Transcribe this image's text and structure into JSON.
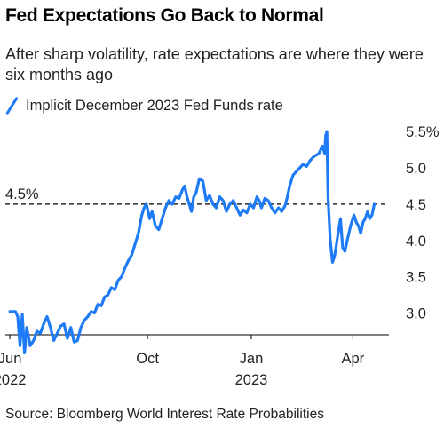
{
  "title": "Fed Expectations Go Back to Normal",
  "subtitle": "After sharp volatility, rate expectations are where they were six months ago",
  "source": "Source: Bloomberg World Interest Rate Probabilities",
  "chart_data": {
    "type": "line",
    "title": "Fed Expectations Go Back to Normal",
    "subtitle": "After sharp volatility, rate expectations are where they were six months ago",
    "xlabel": "",
    "ylabel": "",
    "ylim": [
      2.7,
      5.6
    ],
    "xlim": [
      "2022-05-28",
      "2023-05-03"
    ],
    "y_ticks": [
      {
        "value": 3.0,
        "label": "3.0"
      },
      {
        "value": 3.5,
        "label": "3.5"
      },
      {
        "value": 4.0,
        "label": "4.0"
      },
      {
        "value": 4.5,
        "label": "4.5"
      },
      {
        "value": 5.0,
        "label": "5.0"
      },
      {
        "value": 5.5,
        "label": "5.5%"
      }
    ],
    "x_ticks": [
      {
        "date": "2022-06-01",
        "label": "Jun",
        "sublabel": "2022"
      },
      {
        "date": "2022-10-01",
        "label": "Oct",
        "sublabel": ""
      },
      {
        "date": "2023-01-01",
        "label": "Jan",
        "sublabel": "2023"
      },
      {
        "date": "2023-04-01",
        "label": "Apr",
        "sublabel": ""
      }
    ],
    "grid": {
      "horizontal": false,
      "vertical": false
    },
    "legend_position": "top-left",
    "reference_line": {
      "value": 4.5,
      "label": "4.5%",
      "style": "dashed"
    },
    "series": [
      {
        "name": "Implicit December 2023 Fed Funds rate",
        "color": "#1e7bf5",
        "points": [
          [
            "2022-06-01",
            3.02
          ],
          [
            "2022-06-06",
            3.02
          ],
          [
            "2022-06-08",
            2.95
          ],
          [
            "2022-06-10",
            2.55
          ],
          [
            "2022-06-12",
            2.98
          ],
          [
            "2022-06-14",
            2.45
          ],
          [
            "2022-06-16",
            2.8
          ],
          [
            "2022-06-19",
            2.55
          ],
          [
            "2022-06-22",
            2.62
          ],
          [
            "2022-06-25",
            2.75
          ],
          [
            "2022-06-28",
            2.72
          ],
          [
            "2022-07-01",
            2.85
          ],
          [
            "2022-07-04",
            2.95
          ],
          [
            "2022-07-07",
            2.8
          ],
          [
            "2022-07-10",
            2.62
          ],
          [
            "2022-07-13",
            2.72
          ],
          [
            "2022-07-16",
            2.82
          ],
          [
            "2022-07-19",
            2.85
          ],
          [
            "2022-07-22",
            2.65
          ],
          [
            "2022-07-25",
            2.8
          ],
          [
            "2022-07-28",
            2.6
          ],
          [
            "2022-07-31",
            2.62
          ],
          [
            "2022-08-03",
            2.8
          ],
          [
            "2022-08-06",
            2.9
          ],
          [
            "2022-08-09",
            2.95
          ],
          [
            "2022-08-12",
            3.02
          ],
          [
            "2022-08-15",
            3.0
          ],
          [
            "2022-08-18",
            3.12
          ],
          [
            "2022-08-21",
            3.1
          ],
          [
            "2022-08-24",
            3.22
          ],
          [
            "2022-08-27",
            3.25
          ],
          [
            "2022-08-30",
            3.35
          ],
          [
            "2022-09-02",
            3.32
          ],
          [
            "2022-09-05",
            3.45
          ],
          [
            "2022-09-08",
            3.5
          ],
          [
            "2022-09-11",
            3.62
          ],
          [
            "2022-09-14",
            3.72
          ],
          [
            "2022-09-17",
            3.8
          ],
          [
            "2022-09-20",
            3.95
          ],
          [
            "2022-09-23",
            4.1
          ],
          [
            "2022-09-26",
            4.35
          ],
          [
            "2022-09-28",
            4.45
          ],
          [
            "2022-09-30",
            4.5
          ],
          [
            "2022-10-03",
            4.3
          ],
          [
            "2022-10-05",
            4.4
          ],
          [
            "2022-10-08",
            4.2
          ],
          [
            "2022-10-11",
            4.15
          ],
          [
            "2022-10-14",
            4.3
          ],
          [
            "2022-10-17",
            4.45
          ],
          [
            "2022-10-20",
            4.55
          ],
          [
            "2022-10-23",
            4.5
          ],
          [
            "2022-10-26",
            4.6
          ],
          [
            "2022-10-29",
            4.58
          ],
          [
            "2022-11-01",
            4.7
          ],
          [
            "2022-11-03",
            4.75
          ],
          [
            "2022-11-05",
            4.6
          ],
          [
            "2022-11-07",
            4.5
          ],
          [
            "2022-11-09",
            4.4
          ],
          [
            "2022-11-11",
            4.6
          ],
          [
            "2022-11-13",
            4.65
          ],
          [
            "2022-11-16",
            4.85
          ],
          [
            "2022-11-19",
            4.82
          ],
          [
            "2022-11-22",
            4.55
          ],
          [
            "2022-11-25",
            4.62
          ],
          [
            "2022-11-28",
            4.5
          ],
          [
            "2022-12-01",
            4.45
          ],
          [
            "2022-12-04",
            4.6
          ],
          [
            "2022-12-07",
            4.55
          ],
          [
            "2022-12-10",
            4.4
          ],
          [
            "2022-12-13",
            4.5
          ],
          [
            "2022-12-16",
            4.55
          ],
          [
            "2022-12-19",
            4.45
          ],
          [
            "2022-12-22",
            4.35
          ],
          [
            "2022-12-25",
            4.42
          ],
          [
            "2022-12-28",
            4.38
          ],
          [
            "2022-12-31",
            4.5
          ],
          [
            "2023-01-03",
            4.45
          ],
          [
            "2023-01-06",
            4.6
          ],
          [
            "2023-01-08",
            4.55
          ],
          [
            "2023-01-10",
            4.45
          ],
          [
            "2023-01-13",
            4.58
          ],
          [
            "2023-01-16",
            4.55
          ],
          [
            "2023-01-19",
            4.45
          ],
          [
            "2023-01-22",
            4.38
          ],
          [
            "2023-01-25",
            4.45
          ],
          [
            "2023-01-28",
            4.4
          ],
          [
            "2023-01-31",
            4.48
          ],
          [
            "2023-02-02",
            4.6
          ],
          [
            "2023-02-04",
            4.75
          ],
          [
            "2023-02-07",
            4.9
          ],
          [
            "2023-02-10",
            4.95
          ],
          [
            "2023-02-13",
            5.0
          ],
          [
            "2023-02-16",
            5.05
          ],
          [
            "2023-02-19",
            5.02
          ],
          [
            "2023-02-22",
            5.1
          ],
          [
            "2023-02-25",
            5.15
          ],
          [
            "2023-02-28",
            5.18
          ],
          [
            "2023-03-02",
            5.2
          ],
          [
            "2023-03-05",
            5.3
          ],
          [
            "2023-03-07",
            5.2
          ],
          [
            "2023-03-08",
            5.45
          ],
          [
            "2023-03-09",
            5.5
          ],
          [
            "2023-03-10",
            4.6
          ],
          [
            "2023-03-12",
            4.0
          ],
          [
            "2023-03-14",
            3.7
          ],
          [
            "2023-03-16",
            3.8
          ],
          [
            "2023-03-17",
            3.9
          ],
          [
            "2023-03-19",
            4.1
          ],
          [
            "2023-03-21",
            4.3
          ],
          [
            "2023-03-23",
            3.9
          ],
          [
            "2023-03-25",
            3.85
          ],
          [
            "2023-03-27",
            4.0
          ],
          [
            "2023-03-30",
            4.2
          ],
          [
            "2023-04-02",
            4.35
          ],
          [
            "2023-04-04",
            4.25
          ],
          [
            "2023-04-06",
            4.2
          ],
          [
            "2023-04-08",
            4.1
          ],
          [
            "2023-04-10",
            4.25
          ],
          [
            "2023-04-12",
            4.3
          ],
          [
            "2023-04-14",
            4.4
          ],
          [
            "2023-04-16",
            4.3
          ],
          [
            "2023-04-18",
            4.35
          ],
          [
            "2023-04-20",
            4.5
          ]
        ]
      }
    ]
  }
}
